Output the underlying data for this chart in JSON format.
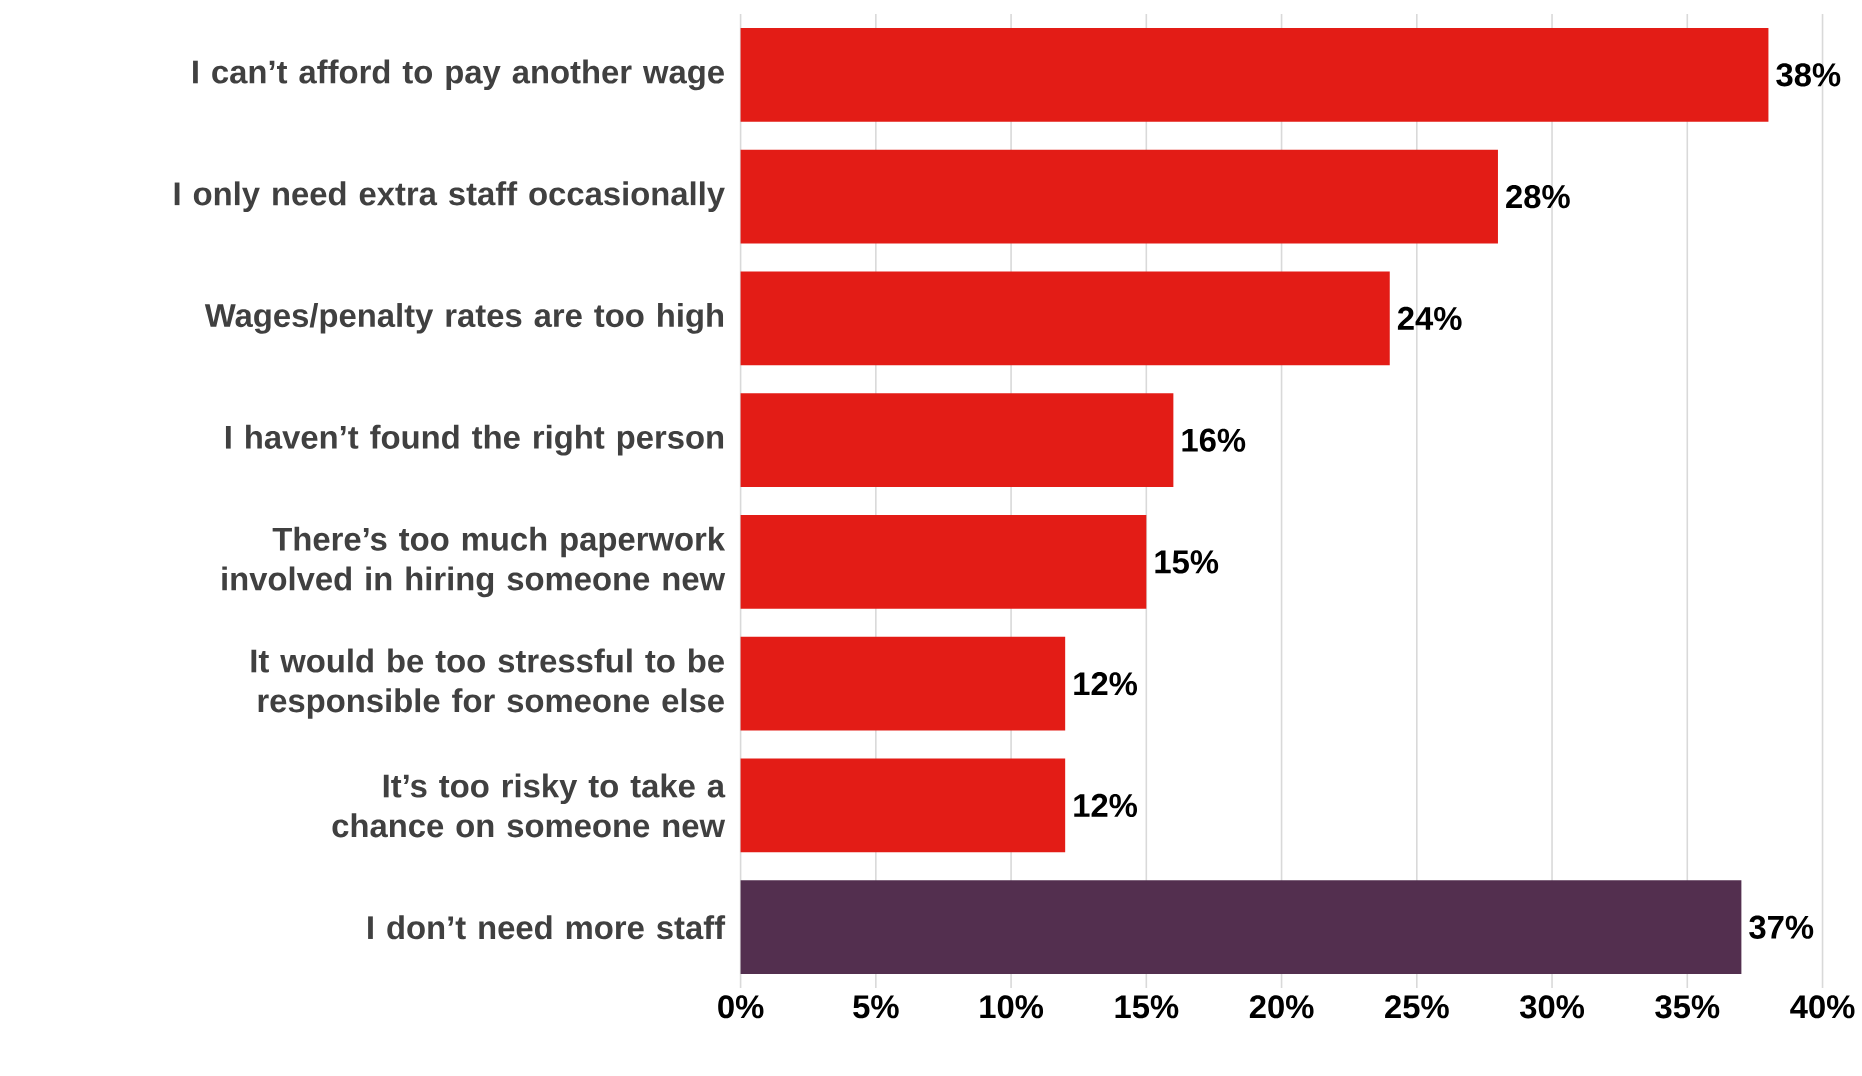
{
  "chart_data": {
    "type": "bar",
    "orientation": "horizontal",
    "categories": [
      "I can’t afford to pay another wage",
      "I only need extra staff occasionally",
      "Wages/penalty rates are too high",
      "I haven’t found the right person",
      "There’s too much paperwork involved in hiring someone new",
      "It would be too stressful to be responsible for someone else",
      "It’s too risky to take a chance on someone new",
      "I don’t need more staff"
    ],
    "values": [
      38,
      28,
      24,
      16,
      15,
      12,
      12,
      37
    ],
    "value_labels": [
      "38%",
      "28%",
      "24%",
      "16%",
      "15%",
      "12%",
      "12%",
      "37%"
    ],
    "colors": [
      "#e31c16",
      "#e31c16",
      "#e31c16",
      "#e31c16",
      "#e31c16",
      "#e31c16",
      "#e31c16",
      "#532f4f"
    ],
    "xlim": [
      0,
      40
    ],
    "xticks": [
      {
        "value": 0,
        "label": "0%"
      },
      {
        "value": 5,
        "label": "5%"
      },
      {
        "value": 10,
        "label": "10%"
      },
      {
        "value": 15,
        "label": "15%"
      },
      {
        "value": 20,
        "label": "20%"
      },
      {
        "value": 25,
        "label": "25%"
      },
      {
        "value": 30,
        "label": "30%"
      },
      {
        "value": 35,
        "label": "35%"
      },
      {
        "value": 40,
        "label": "40%"
      }
    ],
    "grid": "x"
  }
}
